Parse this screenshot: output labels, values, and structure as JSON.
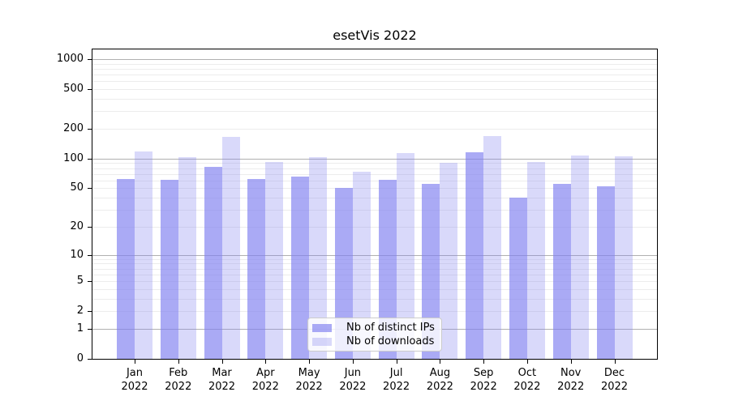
{
  "chart_data": {
    "type": "bar",
    "title": "esetVis 2022",
    "categories": [
      "Jan",
      "Feb",
      "Mar",
      "Apr",
      "May",
      "Jun",
      "Jul",
      "Aug",
      "Sep",
      "Oct",
      "Nov",
      "Dec"
    ],
    "year": "2022",
    "series": [
      {
        "name": "Nb of distinct IPs",
        "color": "rgba(128,128,240,0.67)",
        "values": [
          62,
          61,
          82,
          62,
          66,
          50,
          61,
          56,
          115,
          40,
          55,
          52
        ]
      },
      {
        "name": "Nb of downloads",
        "color": "rgba(128,128,240,0.30)",
        "values": [
          118,
          104,
          166,
          93,
          103,
          74,
          114,
          90,
          170,
          93,
          107,
          106
        ]
      }
    ],
    "xlabel": "",
    "ylabel": "",
    "y_axis": {
      "scale": "log10(1+x)",
      "tick_values": [
        0,
        1,
        2,
        5,
        10,
        20,
        50,
        100,
        200,
        500,
        1000
      ],
      "tick_labels": [
        "0",
        "1",
        "2",
        "5",
        "10",
        "20",
        "50",
        "100",
        "200",
        "500",
        "1000"
      ],
      "ylim": [
        0,
        1250
      ]
    },
    "grid": {
      "on": true,
      "major_color": "#b0b0b0",
      "minor_color": "#ececec"
    },
    "legend": {
      "position": "bottom-center"
    },
    "colors": {
      "background": "#ffffff",
      "spine": "#000000",
      "text": "#000000"
    }
  }
}
